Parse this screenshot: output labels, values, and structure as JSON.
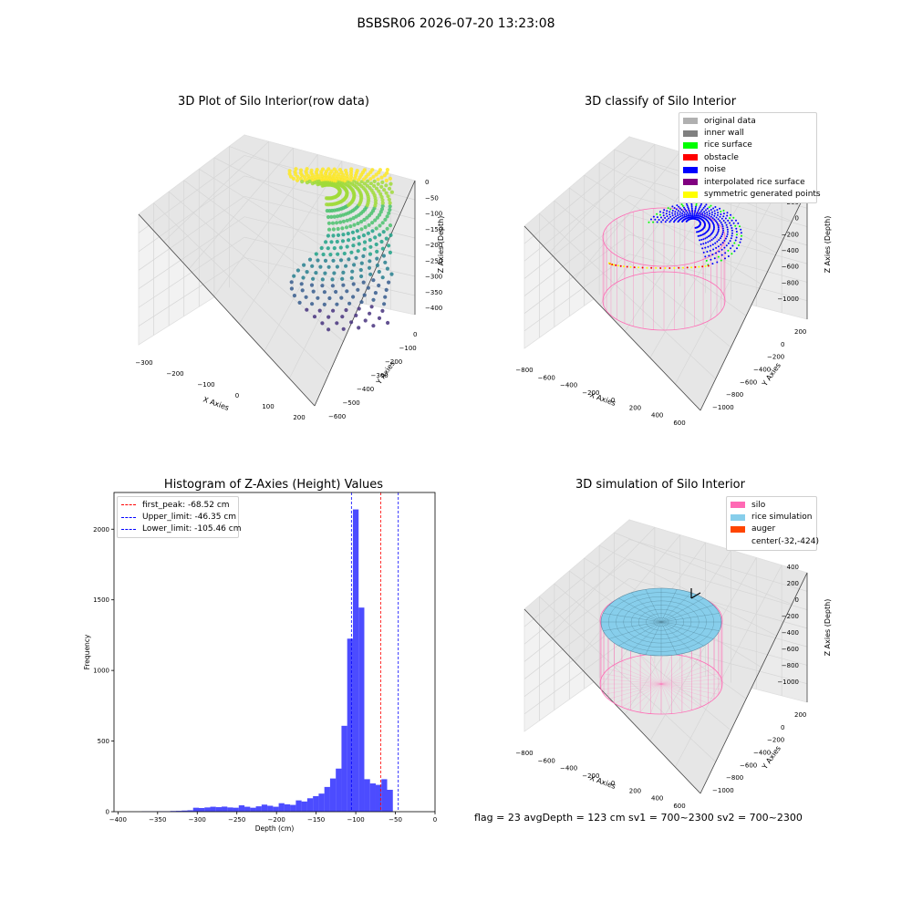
{
  "title": "BSBSR06 2026-07-20 13:23:08",
  "footer": "flag = 23   avgDepth = 123 cm   sv1 = 700~2300  sv2 = 700~2300",
  "chart_data": [
    {
      "type": "scatter",
      "projection": "3d",
      "title": "3D Plot of Silo Interior(row data)",
      "xlabel": "X Axies",
      "ylabel": "Y Axies",
      "zlabel": "Z Axies (Depth)",
      "x_ticks": [
        "−300",
        "−200",
        "−100",
        "0",
        "100",
        "200"
      ],
      "y_ticks": [
        "−600",
        "−500",
        "−400",
        "−300",
        "−200",
        "−100",
        "0"
      ],
      "z_ticks": [
        "0",
        "−50",
        "−100",
        "−150",
        "−200",
        "−250",
        "−300",
        "−350",
        "−400"
      ],
      "colormap": "viridis",
      "xlim": [
        -300,
        250
      ],
      "ylim": [
        -620,
        50
      ],
      "zlim": [
        -420,
        10
      ]
    },
    {
      "type": "scatter",
      "projection": "3d",
      "title": "3D classify of Silo Interior",
      "xlabel": "X Axies",
      "ylabel": "Y Axies",
      "zlabel": "Z Axies (Depth)",
      "x_ticks": [
        "−800",
        "−600",
        "−400",
        "−200",
        "0",
        "200",
        "400",
        "600"
      ],
      "y_ticks": [
        "−1000",
        "−800",
        "−600",
        "−400",
        "−200",
        "0",
        "200"
      ],
      "z_ticks": [
        "200",
        "0",
        "−200",
        "−400",
        "−600",
        "−800",
        "−1000"
      ],
      "legend_position": "top-right",
      "legend": [
        {
          "label": "original data",
          "color": "#b0b0b0"
        },
        {
          "label": "inner wall",
          "color": "#808080"
        },
        {
          "label": "rice surface",
          "color": "#00ff00"
        },
        {
          "label": "obstacle",
          "color": "#ff0000"
        },
        {
          "label": "noise",
          "color": "#0000ff"
        },
        {
          "label": "interpolated rice surface",
          "color": "#800080"
        },
        {
          "label": "symmetric generated points",
          "color": "#ffff00"
        }
      ]
    },
    {
      "type": "bar",
      "title": "Histogram of Z-Axies (Height) Values",
      "xlabel": "Depth (cm)",
      "ylabel": "Frequency",
      "xlim": [
        -405,
        0
      ],
      "ylim": [
        0,
        2260
      ],
      "x_ticks": [
        -400,
        -350,
        -300,
        -250,
        -200,
        -150,
        -100,
        -50,
        0
      ],
      "x_tick_labels": [
        "−400",
        "−350",
        "−300",
        "−250",
        "−200",
        "−150",
        "−100",
        "−50",
        "0"
      ],
      "y_ticks": [
        0,
        500,
        1000,
        1500,
        2000
      ],
      "bin_width": 7.2,
      "bin_start": -370,
      "color": "#0000ff",
      "values": [
        2,
        2,
        2,
        3,
        3,
        5,
        6,
        8,
        10,
        28,
        26,
        30,
        35,
        32,
        36,
        30,
        28,
        45,
        35,
        28,
        38,
        50,
        42,
        35,
        60,
        52,
        48,
        80,
        72,
        95,
        110,
        128,
        175,
        235,
        305,
        608,
        1225,
        2140,
        1445,
        230,
        200,
        190,
        230,
        155
      ],
      "legend_position": "top-left",
      "lines": [
        {
          "label": "first_peak: -68.52 cm",
          "value": -68.52,
          "color": "#ff0000"
        },
        {
          "label": "Upper_limit: -46.35 cm",
          "value": -46.35,
          "color": "#0000ff"
        },
        {
          "label": "Lower_limit: -105.46 cm",
          "value": -105.46,
          "color": "#0000ff"
        }
      ]
    },
    {
      "type": "surface",
      "projection": "3d",
      "title": "3D simulation of Silo Interior",
      "xlabel": "X Axies",
      "ylabel": "Y Axies",
      "zlabel": "Z Axies (Depth)",
      "x_ticks": [
        "−800",
        "−600",
        "−400",
        "−200",
        "0",
        "200",
        "400",
        "600"
      ],
      "y_ticks": [
        "−1000",
        "−800",
        "−600",
        "−400",
        "−200",
        "0",
        "200"
      ],
      "z_ticks": [
        "400",
        "200",
        "0",
        "−200",
        "−400",
        "−600",
        "−800",
        "−1000"
      ],
      "legend_position": "top-right",
      "legend": [
        {
          "label": "silo",
          "color": "#ff69b4"
        },
        {
          "label": "rice simulation",
          "color": "#87ceeb"
        },
        {
          "label": "auger",
          "color": "#ff4500"
        },
        {
          "label": "center(-32,-424)",
          "color": "#ffffff"
        }
      ]
    }
  ]
}
